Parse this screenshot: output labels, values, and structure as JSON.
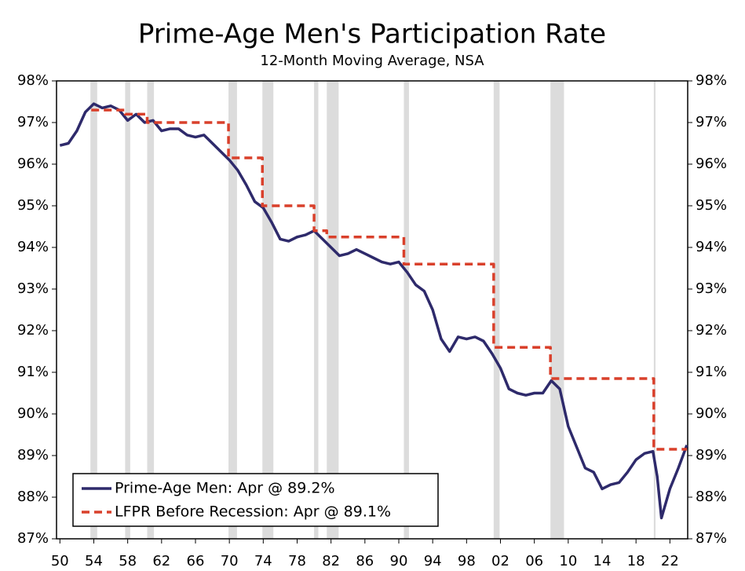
{
  "chart_data": {
    "type": "line",
    "title": "Prime-Age Men's Participation Rate",
    "subtitle": "12-Month Moving Average, NSA",
    "xlim": [
      1949.6,
      2024.1
    ],
    "ylim": [
      87,
      98
    ],
    "yticks": [
      {
        "value": 87,
        "label": "87%"
      },
      {
        "value": 88,
        "label": "88%"
      },
      {
        "value": 89,
        "label": "89%"
      },
      {
        "value": 90,
        "label": "90%"
      },
      {
        "value": 91,
        "label": "91%"
      },
      {
        "value": 92,
        "label": "92%"
      },
      {
        "value": 93,
        "label": "93%"
      },
      {
        "value": 94,
        "label": "94%"
      },
      {
        "value": 95,
        "label": "95%"
      },
      {
        "value": 96,
        "label": "96%"
      },
      {
        "value": 97,
        "label": "97%"
      },
      {
        "value": 98,
        "label": "98%"
      }
    ],
    "xticks": [
      {
        "value": 1950,
        "label": "50"
      },
      {
        "value": 1954,
        "label": "54"
      },
      {
        "value": 1958,
        "label": "58"
      },
      {
        "value": 1962,
        "label": "62"
      },
      {
        "value": 1966,
        "label": "66"
      },
      {
        "value": 1970,
        "label": "70"
      },
      {
        "value": 1974,
        "label": "74"
      },
      {
        "value": 1978,
        "label": "78"
      },
      {
        "value": 1982,
        "label": "82"
      },
      {
        "value": 1986,
        "label": "86"
      },
      {
        "value": 1990,
        "label": "90"
      },
      {
        "value": 1994,
        "label": "94"
      },
      {
        "value": 1998,
        "label": "98"
      },
      {
        "value": 2002,
        "label": "02"
      },
      {
        "value": 2006,
        "label": "06"
      },
      {
        "value": 2010,
        "label": "10"
      },
      {
        "value": 2014,
        "label": "14"
      },
      {
        "value": 2018,
        "label": "18"
      },
      {
        "value": 2022,
        "label": "22"
      }
    ],
    "recessions": [
      [
        1953.6,
        1954.4
      ],
      [
        1957.7,
        1958.3
      ],
      [
        1960.3,
        1961.1
      ],
      [
        1969.9,
        1970.9
      ],
      [
        1973.9,
        1975.2
      ],
      [
        1980.0,
        1980.5
      ],
      [
        1981.5,
        1982.9
      ],
      [
        1990.6,
        1991.2
      ],
      [
        2001.2,
        2001.9
      ],
      [
        2007.9,
        2009.5
      ],
      [
        2020.1,
        2020.3
      ]
    ],
    "recession_color": "#dcdcdc",
    "series": [
      {
        "name": "Prime-Age Men: Apr @ 89.2%",
        "color": "#2e2a6b",
        "style": "solid",
        "x": [
          1950,
          1951,
          1952,
          1953,
          1954,
          1955,
          1956,
          1957,
          1958,
          1959,
          1960,
          1961,
          1962,
          1963,
          1964,
          1965,
          1966,
          1967,
          1968,
          1969,
          1970,
          1971,
          1972,
          1973,
          1974,
          1975,
          1976,
          1977,
          1978,
          1979,
          1980,
          1981,
          1982,
          1983,
          1984,
          1985,
          1986,
          1987,
          1988,
          1989,
          1990,
          1991,
          1992,
          1993,
          1994,
          1995,
          1996,
          1997,
          1998,
          1999,
          2000,
          2001,
          2002,
          2003,
          2004,
          2005,
          2006,
          2007,
          2008,
          2009,
          2010,
          2011,
          2012,
          2013,
          2014,
          2015,
          2016,
          2017,
          2018,
          2019,
          2020,
          2020.5,
          2021,
          2022,
          2023,
          2024
        ],
        "values": [
          96.45,
          96.5,
          96.8,
          97.25,
          97.45,
          97.35,
          97.4,
          97.3,
          97.05,
          97.2,
          97.0,
          97.05,
          96.8,
          96.85,
          96.85,
          96.7,
          96.65,
          96.7,
          96.5,
          96.3,
          96.1,
          95.85,
          95.5,
          95.1,
          94.95,
          94.6,
          94.2,
          94.15,
          94.25,
          94.3,
          94.4,
          94.2,
          94.0,
          93.8,
          93.85,
          93.95,
          93.85,
          93.75,
          93.65,
          93.6,
          93.65,
          93.4,
          93.1,
          92.95,
          92.5,
          91.8,
          91.5,
          91.85,
          91.8,
          91.85,
          91.75,
          91.45,
          91.1,
          90.6,
          90.5,
          90.45,
          90.5,
          90.5,
          90.8,
          90.6,
          89.7,
          89.2,
          88.7,
          88.6,
          88.2,
          88.3,
          88.35,
          88.6,
          88.9,
          89.05,
          89.1,
          88.5,
          87.5,
          88.2,
          88.7,
          89.25
        ]
      },
      {
        "name": "LFPR Before Recession: Apr @ 89.1%",
        "color": "#d9402b",
        "style": "step",
        "x": [
          1953.7,
          1957.7,
          1960.3,
          1969.9,
          1973.9,
          1980.0,
          1981.5,
          1990.6,
          2001.2,
          2007.9,
          2020.1,
          2024.0
        ],
        "values": [
          97.3,
          97.2,
          97.0,
          96.15,
          95.0,
          94.4,
          94.25,
          93.6,
          91.6,
          90.85,
          89.15,
          89.15
        ]
      }
    ]
  }
}
